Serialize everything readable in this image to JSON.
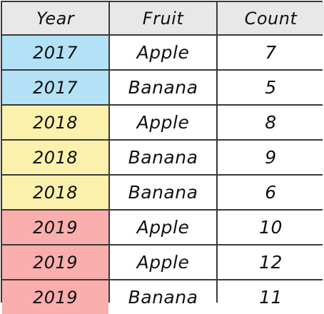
{
  "table": {
    "headers": [
      "Year",
      "Fruit",
      "Count"
    ],
    "rows": [
      {
        "year": "2017",
        "fruit": "Apple",
        "count": "7",
        "color": "#b3e2f6"
      },
      {
        "year": "2017",
        "fruit": "Banana",
        "count": "5",
        "color": "#b3e2f6"
      },
      {
        "year": "2018",
        "fruit": "Apple",
        "count": "8",
        "color": "#fbf1ad"
      },
      {
        "year": "2018",
        "fruit": "Banana",
        "count": "9",
        "color": "#fbf1ad"
      },
      {
        "year": "2018",
        "fruit": "Banana",
        "count": "6",
        "color": "#fbf1ad"
      },
      {
        "year": "2019",
        "fruit": "Apple",
        "count": "10",
        "color": "#fbaeae"
      },
      {
        "year": "2019",
        "fruit": "Apple",
        "count": "12",
        "color": "#fbaeae"
      },
      {
        "year": "2019",
        "fruit": "Banana",
        "count": "11",
        "color": "#fbaeae"
      }
    ]
  }
}
